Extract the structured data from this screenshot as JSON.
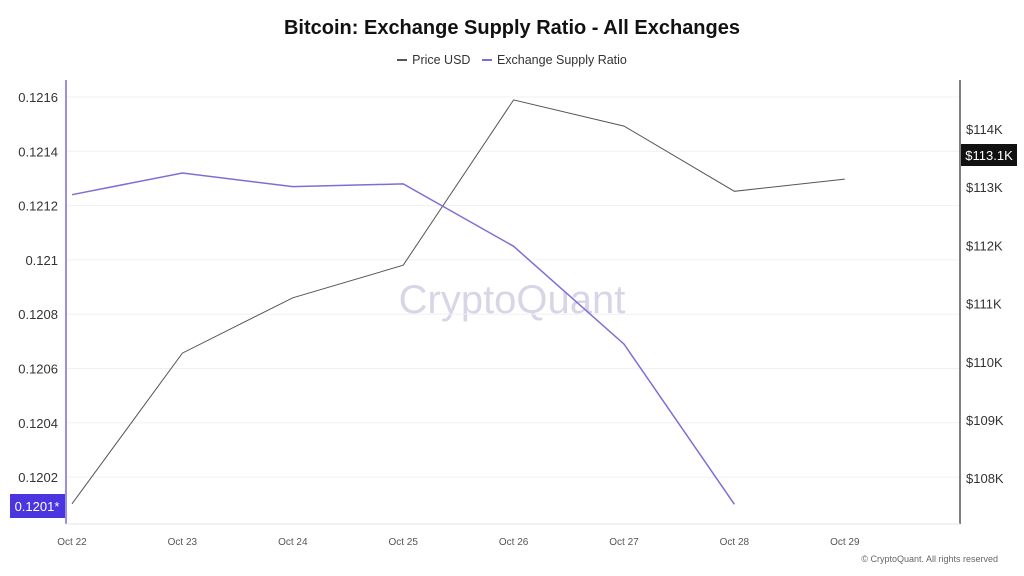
{
  "chart_data": {
    "type": "line",
    "title": "Bitcoin: Exchange Supply Ratio - All Exchanges",
    "categories": [
      "Oct 22",
      "Oct 23",
      "Oct 24",
      "Oct 25",
      "Oct 26",
      "Oct 27",
      "Oct 28",
      "Oct 29"
    ],
    "series": [
      {
        "name": "Price USD",
        "axis": "right",
        "color": "#555555",
        "values": [
          107560,
          110150,
          111100,
          111660,
          114500,
          114050,
          112930,
          113140
        ]
      },
      {
        "name": "Exchange Supply Ratio",
        "axis": "left",
        "color": "#7b6fd6",
        "values": [
          0.12124,
          0.12132,
          0.12127,
          0.12128,
          0.12105,
          0.12069,
          0.1201,
          null
        ]
      }
    ],
    "left_axis": {
      "ticks": [
        "0.1216",
        "0.1214",
        "0.1212",
        "0.121",
        "0.1208",
        "0.1206",
        "0.1204",
        "0.1202"
      ],
      "tick_values": [
        0.1216,
        0.1214,
        0.1212,
        0.121,
        0.1208,
        0.1206,
        0.1204,
        0.1202
      ],
      "range": [
        0.12003,
        0.12166
      ]
    },
    "right_axis": {
      "ticks": [
        "$114K",
        "$113K",
        "$112K",
        "$111K",
        "$110K",
        "$109K",
        "$108K"
      ],
      "tick_values": [
        114000,
        113000,
        112000,
        111000,
        110000,
        109000,
        108000
      ],
      "range": [
        107220,
        114560
      ]
    },
    "left_marker": {
      "label": "0.1201*",
      "color": "#4a35e0"
    },
    "right_marker": {
      "label": "$113.1K",
      "color": "#111111"
    },
    "grid": true,
    "legend_position": "top-center",
    "watermark": "CryptoQuant"
  },
  "footer": "© CryptoQuant. All rights reserved"
}
